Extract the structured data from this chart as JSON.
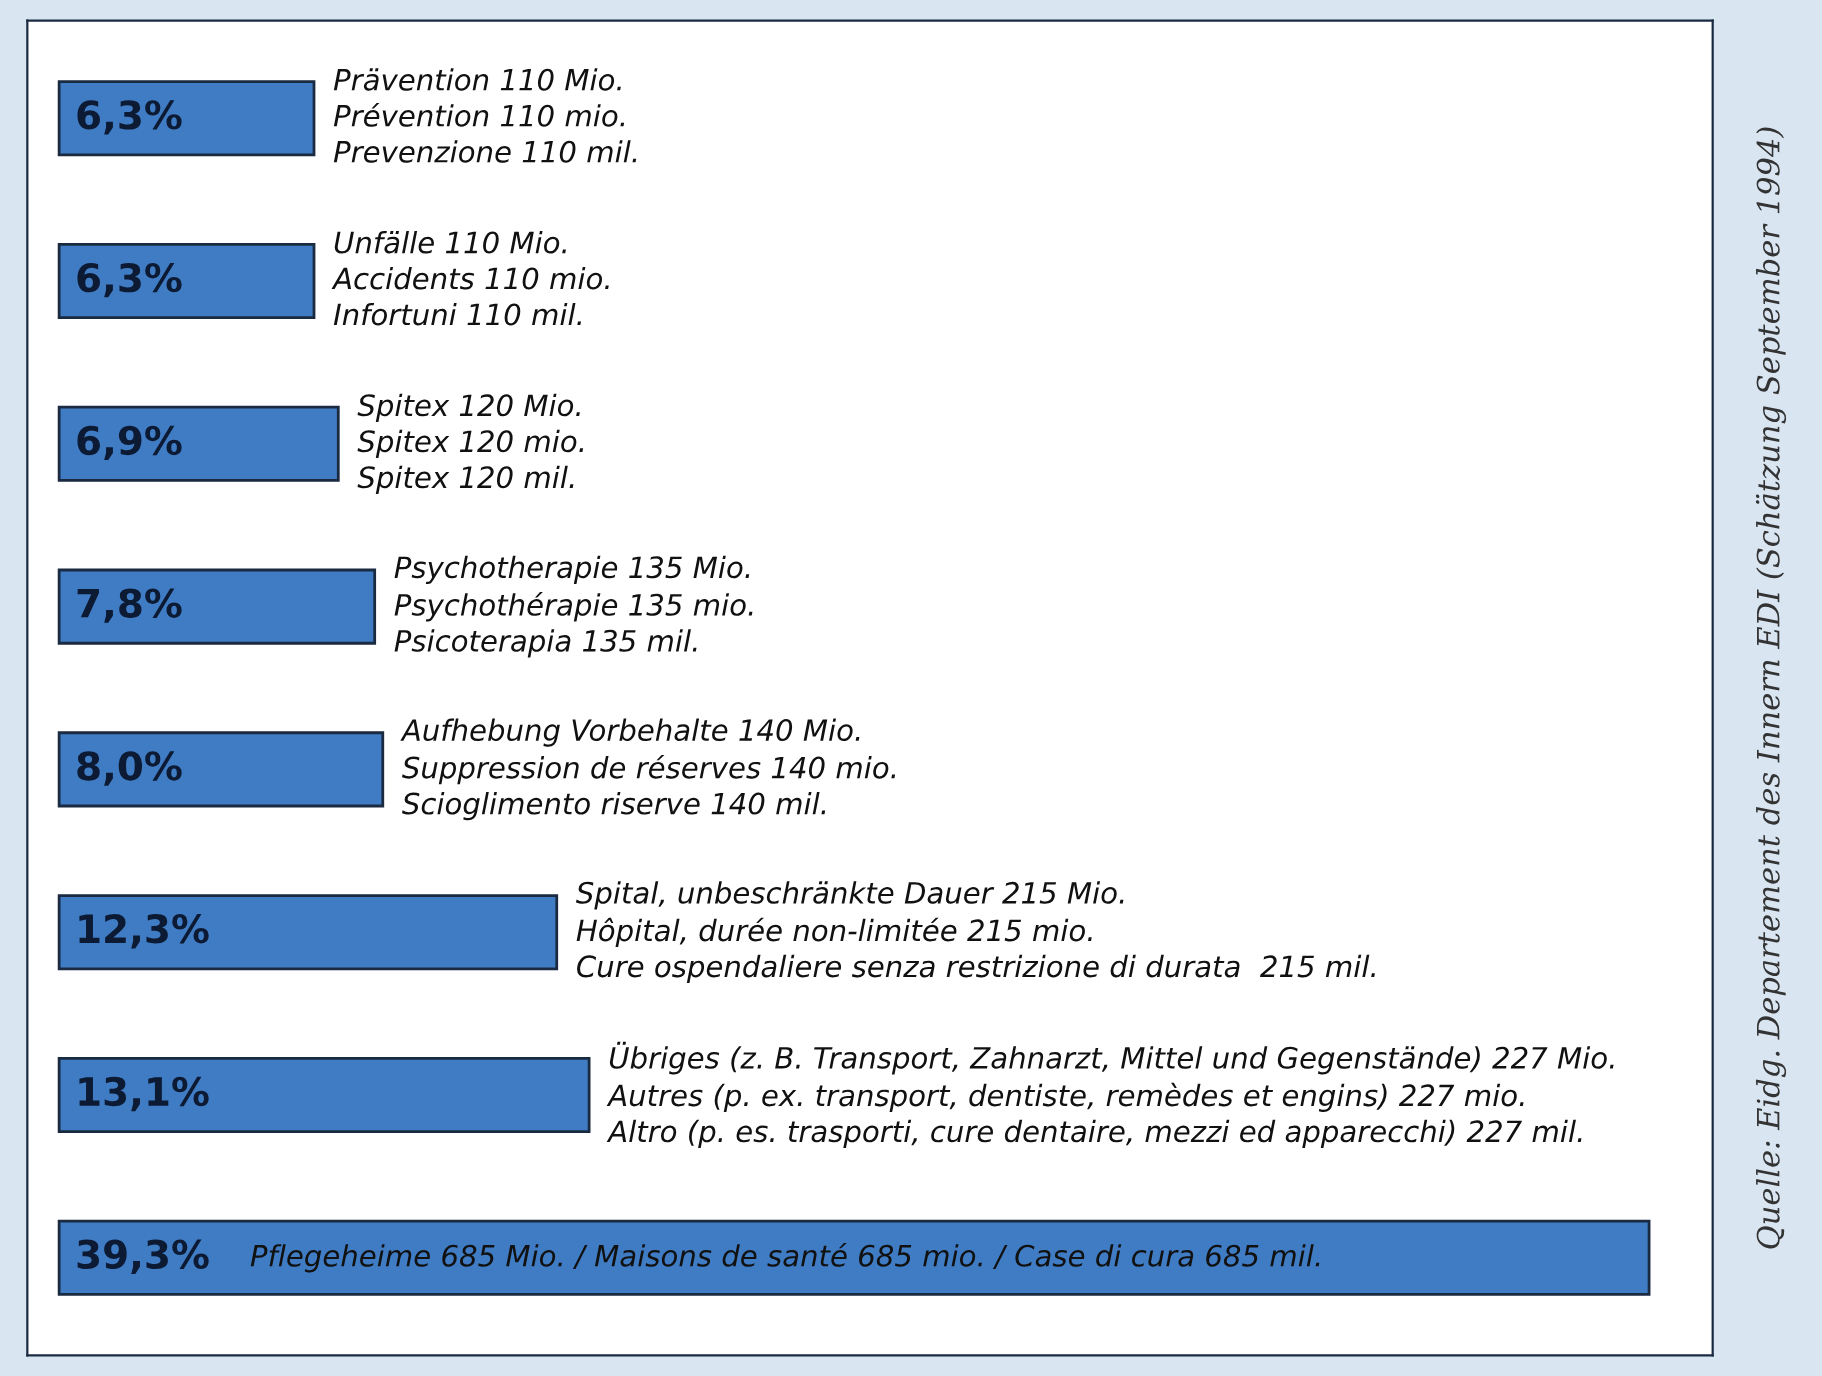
{
  "chart_data": {
    "type": "bar",
    "orientation": "horizontal",
    "categories": [
      "Prävention 110 Mio.\nPrévention 110 mio.\nPrevenzione 110 mil.",
      "Unfälle 110 Mio.\nAccidents 110 mio.\nInfortuni 110 mil.",
      "Spitex 120 Mio.\nSpitex 120 mio.\nSpitex 120 mil.",
      "Psychotherapie 135 Mio.\nPsychothérapie 135 mio.\nPsicoterapia 135 mil.",
      "Aufhebung Vorbehalte 140 Mio.\nSuppression de réserves 140 mio.\nScioglimento riserve 140 mil.",
      "Spital, unbeschränkte Dauer 215 Mio.\nHôpital, durée non-limitée 215 mio.\nCure ospendaliere senza restrizione di durata  215 mil.",
      "Übriges (z. B. Transport, Zahnarzt, Mittel und Gegenstände) 227 Mio.\nAutres (p. ex. transport, dentiste, remèdes et engins) 227 mio.\nAltro (p. es. trasporti, cure dentaire, mezzi ed apparecchi) 227 mil.",
      "Pflegeheime 685 Mio. / Maisons de santé 685 mio. / Case di cura 685 mil."
    ],
    "values": [
      6.3,
      6.3,
      6.9,
      7.8,
      8.0,
      12.3,
      13.1,
      39.3
    ],
    "value_labels": [
      "6,3%",
      "6,3%",
      "6,9%",
      "7,8%",
      "8,0%",
      "12,3%",
      "13,1%",
      "39,3%"
    ],
    "color": "#3f7cc4",
    "annotations": [
      "Quelle: Eidg. Departement des Innern EDI (Schätzung September 1994)"
    ]
  }
}
